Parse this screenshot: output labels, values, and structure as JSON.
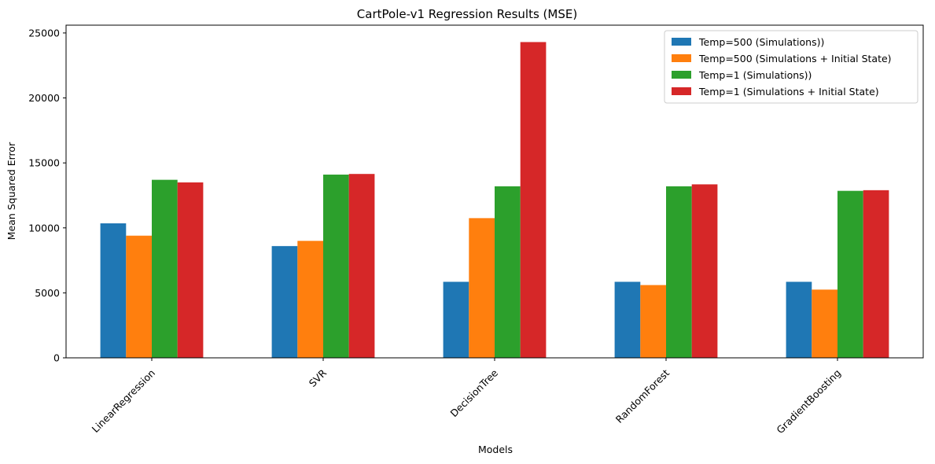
{
  "chart_data": {
    "type": "bar",
    "title": "CartPole-v1 Regression Results (MSE)",
    "xlabel": "Models",
    "ylabel": "Mean Squared Error",
    "categories": [
      "LinearRegression",
      "SVR",
      "DecisionTree",
      "RandomForest",
      "GradientBoosting"
    ],
    "series": [
      {
        "name": "Temp=500 (Simulations))",
        "color": "#1f77b4",
        "values": [
          10350,
          8600,
          5850,
          5850,
          5850
        ]
      },
      {
        "name": "Temp=500 (Simulations + Initial State)",
        "color": "#ff7f0e",
        "values": [
          9400,
          9000,
          10750,
          5600,
          5250
        ]
      },
      {
        "name": "Temp=1 (Simulations))",
        "color": "#2ca02c",
        "values": [
          13700,
          14100,
          13200,
          13200,
          12850
        ]
      },
      {
        "name": "Temp=1 (Simulations + Initial State)",
        "color": "#d62728",
        "values": [
          13500,
          14150,
          24300,
          13350,
          12900
        ]
      }
    ],
    "ylim": [
      0,
      25600
    ],
    "yticks": [
      0,
      5000,
      10000,
      15000,
      20000,
      25000
    ],
    "grid": false,
    "legend_position": "top-right",
    "xtick_rotation": 45
  }
}
